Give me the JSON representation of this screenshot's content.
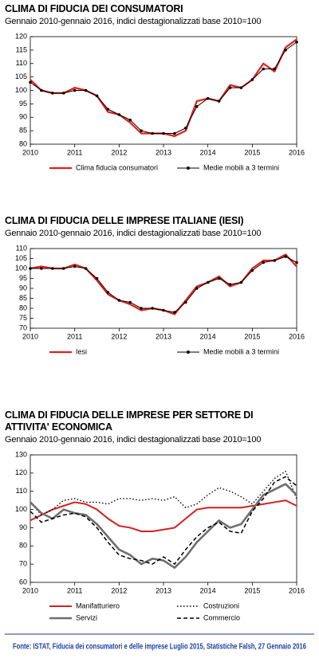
{
  "chart_data": [
    {
      "type": "line",
      "title": "CLIMA DI FIDUCIA DEI CONSUMATORI",
      "subtitle": "Gennaio 2010-gennaio 2016, indici destagionalizzati base 2010=100",
      "x": [
        2010,
        2010.25,
        2010.5,
        2010.75,
        2011,
        2011.25,
        2011.5,
        2011.75,
        2012,
        2012.25,
        2012.5,
        2012.75,
        2013,
        2013.25,
        2013.5,
        2013.75,
        2014,
        2014.25,
        2014.5,
        2014.75,
        2015,
        2015.25,
        2015.5,
        2015.75,
        2016
      ],
      "xlim": [
        2010,
        2016
      ],
      "xticks": [
        2010,
        2011,
        2012,
        2013,
        2014,
        2015,
        2016
      ],
      "ylim": [
        80,
        120
      ],
      "yticks": [
        80,
        85,
        90,
        95,
        100,
        105,
        110,
        115,
        120
      ],
      "legend_columns": 2,
      "series": [
        {
          "name": "Clima fiducia consumatori",
          "color": "#e0201b",
          "linestyle": "solid",
          "linewidth": 2.2,
          "marker": false,
          "values": [
            104,
            100,
            99,
            99,
            101,
            100,
            98,
            92,
            91,
            88,
            84,
            84,
            84,
            83,
            85,
            96,
            97,
            96,
            102,
            101,
            104,
            110,
            107,
            116,
            119
          ]
        },
        {
          "name": "Medie mobili a 3 termini",
          "color": "#000000",
          "linestyle": "solid",
          "linewidth": 1,
          "marker": true,
          "values": [
            103,
            100,
            99,
            99,
            100,
            100,
            98,
            93,
            91,
            89,
            85,
            84,
            84,
            84,
            86,
            94,
            97,
            96,
            101,
            101,
            104,
            108,
            108,
            115,
            118
          ]
        }
      ]
    },
    {
      "type": "line",
      "title": "CLIMA DI FIDUCIA DELLE IMPRESE ITALIANE (IESI)",
      "subtitle": "Gennaio 2010-gennaio 2016, indici destagionalizzati base 2010=100",
      "x": [
        2010,
        2010.25,
        2010.5,
        2010.75,
        2011,
        2011.25,
        2011.5,
        2011.75,
        2012,
        2012.25,
        2012.5,
        2012.75,
        2013,
        2013.25,
        2013.5,
        2013.75,
        2014,
        2014.25,
        2014.5,
        2014.75,
        2015,
        2015.25,
        2015.5,
        2015.75,
        2016
      ],
      "xlim": [
        2010,
        2016
      ],
      "xticks": [
        2010,
        2011,
        2012,
        2013,
        2014,
        2015,
        2016
      ],
      "ylim": [
        70,
        110
      ],
      "yticks": [
        70,
        75,
        80,
        85,
        90,
        95,
        100,
        105,
        110
      ],
      "legend_columns": 2,
      "series": [
        {
          "name": "Iesi",
          "color": "#e0201b",
          "linestyle": "solid",
          "linewidth": 2.2,
          "marker": false,
          "values": [
            100,
            101,
            100,
            100,
            102,
            100,
            94,
            87,
            84,
            82,
            79,
            80,
            79,
            77,
            84,
            91,
            93,
            96,
            91,
            93,
            100,
            104,
            104,
            107,
            101
          ]
        },
        {
          "name": "Medie mobili a 3 termini",
          "color": "#000000",
          "linestyle": "solid",
          "linewidth": 1,
          "marker": true,
          "values": [
            100,
            100,
            100,
            100,
            101,
            100,
            95,
            88,
            84,
            83,
            80,
            80,
            79,
            78,
            83,
            90,
            93,
            95,
            92,
            93,
            99,
            103,
            104,
            106,
            103
          ]
        }
      ]
    },
    {
      "type": "line",
      "title": "CLIMA DI FIDUCIA DELLE IMPRESE PER SETTORE DI ATTIVITA' ECONOMICA",
      "subtitle": "Gennaio 2010-gennaio 2016, indici destagionalizzati base 2010=100",
      "x": [
        2010,
        2010.25,
        2010.5,
        2010.75,
        2011,
        2011.25,
        2011.5,
        2011.75,
        2012,
        2012.25,
        2012.5,
        2012.75,
        2013,
        2013.25,
        2013.5,
        2013.75,
        2014,
        2014.25,
        2014.5,
        2014.75,
        2015,
        2015.25,
        2015.5,
        2015.75,
        2016
      ],
      "xlim": [
        2010,
        2016
      ],
      "xticks": [
        2010,
        2011,
        2012,
        2013,
        2014,
        2015,
        2016
      ],
      "ylim": [
        60,
        130
      ],
      "yticks": [
        60,
        70,
        80,
        90,
        100,
        110,
        120,
        130
      ],
      "legend_columns": 2,
      "series": [
        {
          "name": "Manifatturiero",
          "color": "#d42020",
          "linestyle": "solid",
          "linewidth": 2,
          "marker": false,
          "values": [
            94,
            97,
            100,
            102,
            104,
            103,
            100,
            95,
            91,
            90,
            88,
            88,
            89,
            90,
            95,
            100,
            101,
            101,
            101,
            101,
            102,
            103,
            104,
            105,
            102
          ]
        },
        {
          "name": "Costruzioni",
          "color": "#000000",
          "linestyle": "dotted",
          "linewidth": 1.4,
          "marker": false,
          "values": [
            104,
            97,
            100,
            105,
            106,
            104,
            104,
            103,
            106,
            106,
            105,
            106,
            105,
            107,
            101,
            103,
            108,
            112,
            110,
            107,
            103,
            110,
            117,
            121,
            106
          ]
        },
        {
          "name": "Servizi",
          "color": "#6e6e6e",
          "linestyle": "solid",
          "linewidth": 2.6,
          "marker": false,
          "values": [
            104,
            98,
            95,
            100,
            98,
            97,
            92,
            85,
            78,
            75,
            70,
            73,
            72,
            68,
            74,
            82,
            88,
            94,
            90,
            92,
            100,
            108,
            111,
            114,
            108
          ]
        },
        {
          "name": "Commercio",
          "color": "#000000",
          "linestyle": "dashed",
          "linewidth": 1.5,
          "marker": false,
          "values": [
            99,
            93,
            95,
            97,
            98,
            96,
            90,
            82,
            75,
            73,
            72,
            70,
            74,
            70,
            78,
            85,
            90,
            93,
            88,
            87,
            99,
            106,
            115,
            118,
            113
          ]
        }
      ]
    }
  ],
  "source": "Fonte: ISTAT, Fiducia dei consumatori e delle imprese Luglio 2015, Statistiche Falsh, 27 Gennaio 2016"
}
